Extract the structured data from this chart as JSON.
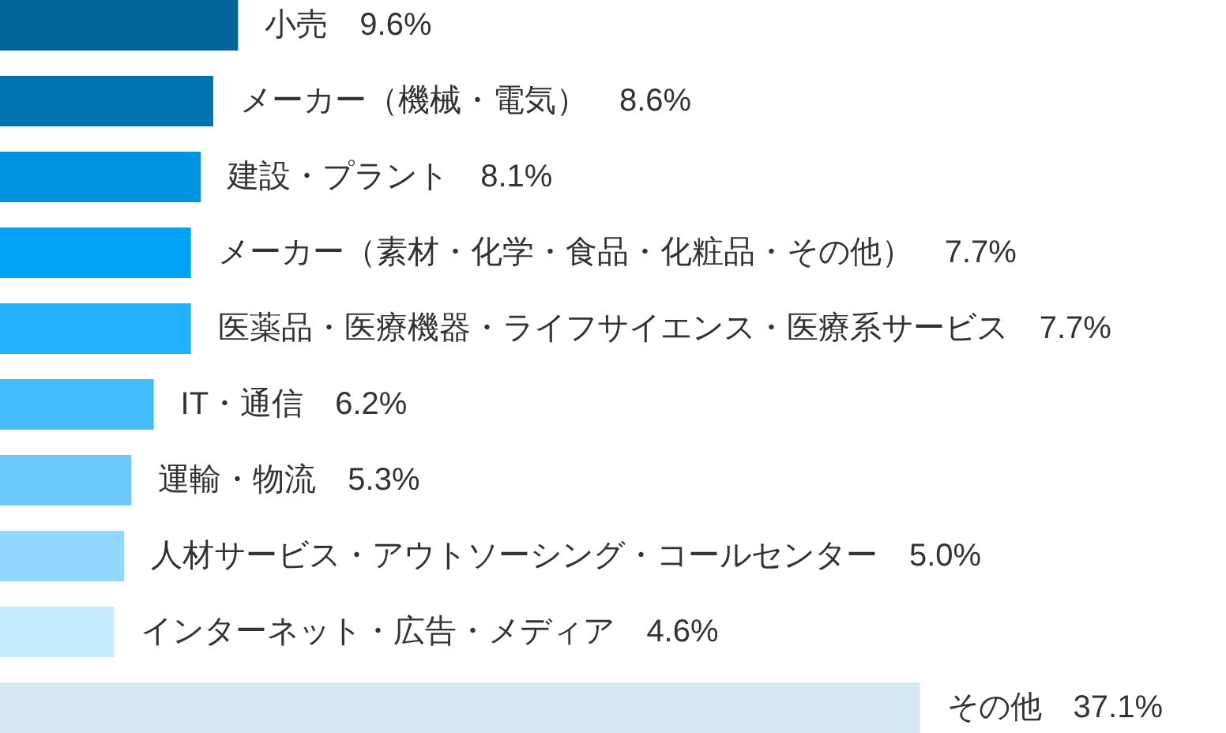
{
  "chart_data": {
    "type": "bar",
    "orientation": "horizontal",
    "categories": [
      null,
      null,
      null,
      null,
      null,
      null,
      null,
      null,
      null,
      null
    ],
    "values": [
      9.6,
      8.6,
      8.1,
      7.7,
      7.7,
      6.2,
      5.3,
      5.0,
      4.6,
      37.1
    ],
    "colors": [
      "#03649a",
      "#0072ad",
      "#0093e0",
      "#00a3f5",
      "#22b0fa",
      "#46bdfb",
      "#6ccbfc",
      "#92d7fd",
      "#c5e9fd",
      "#d6e9f3"
    ],
    "value_labels": [
      "小売　9.6%",
      "メーカー（機械・電気）　8.6%",
      "建設・プラント　8.1%",
      "メーカー（素材・化学・食品・化粧品・その他）　7.7%",
      "医薬品・医療機器・ライフサイエンス・医療系サービス　7.7%",
      "IT・通信　6.2%",
      "運輸・物流　5.3%",
      "人材サービス・アウトソーシング・コールセンター　5.0%",
      "インターネット・広告・メディア　4.6%",
      "その他　37.1%"
    ]
  }
}
